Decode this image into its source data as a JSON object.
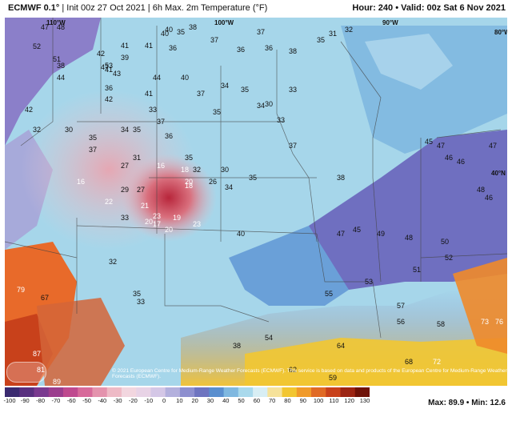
{
  "header": {
    "model": "ECMWF 0.1°",
    "init": "Init 00z 27 Oct 2021",
    "field": "6h Max. 2m Temperature (°F)",
    "hour": "Hour: 240",
    "valid": "Valid: 00z Sat 6 Nov 2021"
  },
  "map": {
    "longitudes": [
      "110°W",
      "100°W",
      "90°W",
      "80°W"
    ],
    "latitudes": [
      "40°N"
    ],
    "credit": "© 2021 European Centre for Medium-Range Weather Forecasts (ECMWF). This service is based on data and products of the European Centre for Medium-Range Weather Forecasts (ECMWF).",
    "labels": [
      "47",
      "48",
      "38",
      "35",
      "40",
      "37",
      "37",
      "31",
      "32",
      "52",
      "51",
      "38",
      "36",
      "36",
      "36",
      "38",
      "35",
      "33",
      "47",
      "53",
      "42",
      "44",
      "42",
      "32",
      "30",
      "35",
      "34",
      "37",
      "34",
      "35",
      "34",
      "30",
      "35",
      "33",
      "37",
      "36",
      "35",
      "37",
      "30",
      "33",
      "16",
      "18",
      "21",
      "27",
      "29",
      "23",
      "18",
      "26",
      "34",
      "35",
      "17",
      "20",
      "27",
      "20",
      "19",
      "23",
      "22",
      "16",
      "38",
      "32",
      "20",
      "33",
      "32",
      "31",
      "35",
      "33",
      "38",
      "40",
      "47",
      "45",
      "49",
      "48",
      "50",
      "52",
      "51",
      "53",
      "55",
      "58",
      "57",
      "56",
      "45",
      "47",
      "47",
      "46",
      "46",
      "48",
      "46",
      "54",
      "62",
      "59",
      "64",
      "79",
      "67",
      "87",
      "81",
      "89",
      "73",
      "76",
      "72",
      "68",
      "40",
      "41",
      "41",
      "39",
      "42",
      "41",
      "43",
      "44",
      "40",
      "41",
      "36",
      "35",
      "37"
    ]
  },
  "legend": {
    "ticks": [
      "-100",
      "-90",
      "-80",
      "-70",
      "-60",
      "-50",
      "-40",
      "-30",
      "-20",
      "-10",
      "0",
      "10",
      "20",
      "30",
      "40",
      "50",
      "60",
      "70",
      "80",
      "90",
      "100",
      "110",
      "120",
      "130"
    ],
    "max_label": "Max: 89.9",
    "min_label": "Min: 12.6",
    "max": 89.9,
    "min": 12.6
  }
}
